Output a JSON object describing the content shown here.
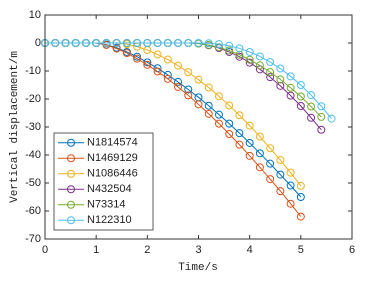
{
  "chart_data": {
    "type": "line",
    "xlabel": "Time/s",
    "ylabel": "Vertical displacement/m",
    "xlim": [
      0,
      6
    ],
    "xticks": [
      0,
      1,
      2,
      3,
      4,
      5,
      6
    ],
    "ylim": [
      -70,
      10
    ],
    "yticks": [
      10,
      0,
      -10,
      -20,
      -30,
      -40,
      -50,
      -60,
      -70
    ],
    "legend": "lower left",
    "series": [
      {
        "name": "N1814574",
        "color": "#0072BD",
        "x": [
          0,
          0.2,
          0.4,
          0.6,
          0.8,
          1.0,
          1.2,
          1.4,
          1.6,
          1.8,
          2.0,
          2.2,
          2.4,
          2.6,
          2.8,
          3.0,
          3.2,
          3.4,
          3.6,
          3.8,
          4.0,
          4.2,
          4.4,
          4.6,
          4.8,
          5.0
        ],
        "values": [
          0,
          0,
          0,
          0,
          0,
          0,
          -0.6,
          -1.7,
          -3.2,
          -4.9,
          -6.9,
          -9.0,
          -11.4,
          -13.9,
          -16.6,
          -19.4,
          -22.4,
          -25.6,
          -28.8,
          -32.2,
          -35.7,
          -39.4,
          -43.1,
          -47.0,
          -50.9,
          -55.0
        ]
      },
      {
        "name": "N1469129",
        "color": "#D95319",
        "x": [
          0,
          0.2,
          0.4,
          0.6,
          0.8,
          1.0,
          1.2,
          1.4,
          1.6,
          1.8,
          2.0,
          2.2,
          2.4,
          2.6,
          2.8,
          3.0,
          3.2,
          3.4,
          3.6,
          3.8,
          4.0,
          4.2,
          4.4,
          4.6,
          4.8,
          5.0
        ],
        "values": [
          0,
          0,
          0,
          0,
          0,
          0,
          -0.7,
          -2.0,
          -3.6,
          -5.6,
          -7.8,
          -10.2,
          -12.8,
          -15.7,
          -18.7,
          -21.9,
          -25.3,
          -28.8,
          -32.5,
          -36.3,
          -40.3,
          -44.4,
          -48.6,
          -52.9,
          -57.4,
          -62.0
        ]
      },
      {
        "name": "N1086446",
        "color": "#EDB120",
        "x": [
          0,
          0.2,
          0.4,
          0.6,
          0.8,
          1.0,
          1.2,
          1.4,
          1.6,
          1.8,
          2.0,
          2.2,
          2.4,
          2.6,
          2.8,
          3.0,
          3.2,
          3.4,
          3.6,
          3.8,
          4.0,
          4.2,
          4.4,
          4.6,
          4.8,
          5.0
        ],
        "values": [
          0,
          0,
          0,
          0,
          0,
          0,
          0,
          0,
          -0.4,
          -1.3,
          -2.5,
          -4.1,
          -5.9,
          -8.1,
          -10.4,
          -13.1,
          -15.9,
          -19.0,
          -22.3,
          -25.8,
          -29.5,
          -33.4,
          -37.6,
          -41.8,
          -46.3,
          -51.0
        ]
      },
      {
        "name": "N432504",
        "color": "#7E2F8E",
        "x": [
          0,
          0.2,
          0.4,
          0.6,
          0.8,
          1.0,
          1.2,
          1.4,
          1.6,
          1.8,
          2.0,
          2.2,
          2.4,
          2.6,
          2.8,
          3.0,
          3.2,
          3.4,
          3.6,
          3.8,
          4.0,
          4.2,
          4.4,
          4.6,
          4.8,
          5.0,
          5.2,
          5.4
        ],
        "values": [
          0,
          0,
          0,
          0,
          0,
          0,
          0,
          0,
          0,
          0,
          0,
          0,
          0,
          0,
          0,
          -0.2,
          -0.8,
          -1.8,
          -3.2,
          -4.9,
          -7.0,
          -9.4,
          -12.2,
          -15.3,
          -18.8,
          -22.5,
          -26.7,
          -31.0
        ]
      },
      {
        "name": "N73314",
        "color": "#77AC30",
        "x": [
          0,
          0.2,
          0.4,
          0.6,
          0.8,
          1.0,
          1.2,
          1.4,
          1.6,
          1.8,
          2.0,
          2.2,
          2.4,
          2.6,
          2.8,
          3.0,
          3.2,
          3.4,
          3.6,
          3.8,
          4.0,
          4.2,
          4.4,
          4.6,
          4.8,
          5.0,
          5.2,
          5.4
        ],
        "values": [
          0,
          0,
          0,
          0,
          0,
          0,
          0,
          0,
          0,
          0,
          0,
          0,
          0,
          0,
          0,
          -0.2,
          -0.7,
          -1.5,
          -2.7,
          -4.2,
          -6.0,
          -8.0,
          -10.4,
          -13.0,
          -16.0,
          -19.1,
          -22.7,
          -26.4
        ]
      },
      {
        "name": "N122310",
        "color": "#4DBEEE",
        "x": [
          0,
          0.2,
          0.4,
          0.6,
          0.8,
          1.0,
          1.2,
          1.4,
          1.6,
          1.8,
          2.0,
          2.2,
          2.4,
          2.6,
          2.8,
          3.0,
          3.2,
          3.4,
          3.6,
          3.8,
          4.0,
          4.2,
          4.4,
          4.6,
          4.8,
          5.0,
          5.2,
          5.4,
          5.6
        ],
        "values": [
          0,
          0,
          0,
          0,
          0,
          0,
          0,
          0,
          0,
          0,
          0,
          0,
          0,
          0,
          0,
          0,
          -0.1,
          -0.4,
          -1.0,
          -1.9,
          -3.2,
          -4.8,
          -6.8,
          -9.1,
          -11.9,
          -15.0,
          -18.6,
          -22.6,
          -27.0
        ]
      }
    ]
  }
}
